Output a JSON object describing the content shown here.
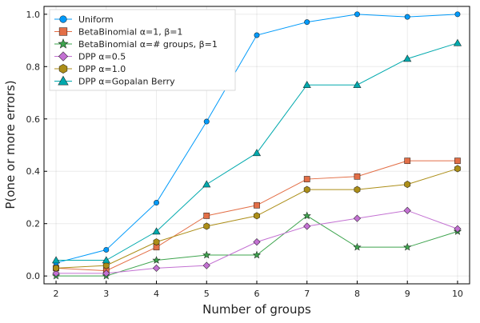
{
  "chart_data": {
    "type": "line",
    "title": "",
    "xlabel": "Number of groups",
    "ylabel": "P(one or more errors)",
    "x": [
      2,
      3,
      4,
      5,
      6,
      7,
      8,
      9,
      10
    ],
    "xlim": [
      1.76,
      10.24
    ],
    "ylim": [
      -0.03,
      1.03
    ],
    "xticks": [
      2,
      3,
      4,
      5,
      6,
      7,
      8,
      9,
      10
    ],
    "yticks": [
      0.0,
      0.2,
      0.4,
      0.6,
      0.8,
      1.0
    ],
    "ytick_labels": [
      "0.0",
      "0.2",
      "0.4",
      "0.6",
      "0.8",
      "1.0"
    ],
    "grid": true,
    "legend_position": "top-left",
    "series": [
      {
        "name": "Uniform",
        "color": "#009AFA",
        "marker": "circle",
        "values": [
          0.05,
          0.1,
          0.28,
          0.59,
          0.92,
          0.97,
          1.0,
          0.99,
          1.0
        ]
      },
      {
        "name": "BetaBinomial α=1, β=1",
        "color": "#E36F47",
        "marker": "square",
        "values": [
          0.03,
          0.02,
          0.11,
          0.23,
          0.27,
          0.37,
          0.38,
          0.44,
          0.44
        ]
      },
      {
        "name": "BetaBinomial α=# groups, β=1",
        "color": "#3EA44E",
        "marker": "star",
        "values": [
          0.0,
          0.0,
          0.06,
          0.08,
          0.08,
          0.23,
          0.11,
          0.11,
          0.17
        ]
      },
      {
        "name": "DPP α=0.5",
        "color": "#C371D2",
        "marker": "diamond",
        "values": [
          0.01,
          0.01,
          0.03,
          0.04,
          0.13,
          0.19,
          0.22,
          0.25,
          0.18
        ]
      },
      {
        "name": "DPP α=1.0",
        "color": "#AC8E18",
        "marker": "hexagon",
        "values": [
          0.03,
          0.04,
          0.13,
          0.19,
          0.23,
          0.33,
          0.33,
          0.35,
          0.41
        ]
      },
      {
        "name": "DPP α=Gopalan Berry",
        "color": "#00A9AD",
        "marker": "triangle",
        "values": [
          0.06,
          0.06,
          0.17,
          0.35,
          0.47,
          0.73,
          0.73,
          0.83,
          0.89
        ]
      }
    ]
  }
}
